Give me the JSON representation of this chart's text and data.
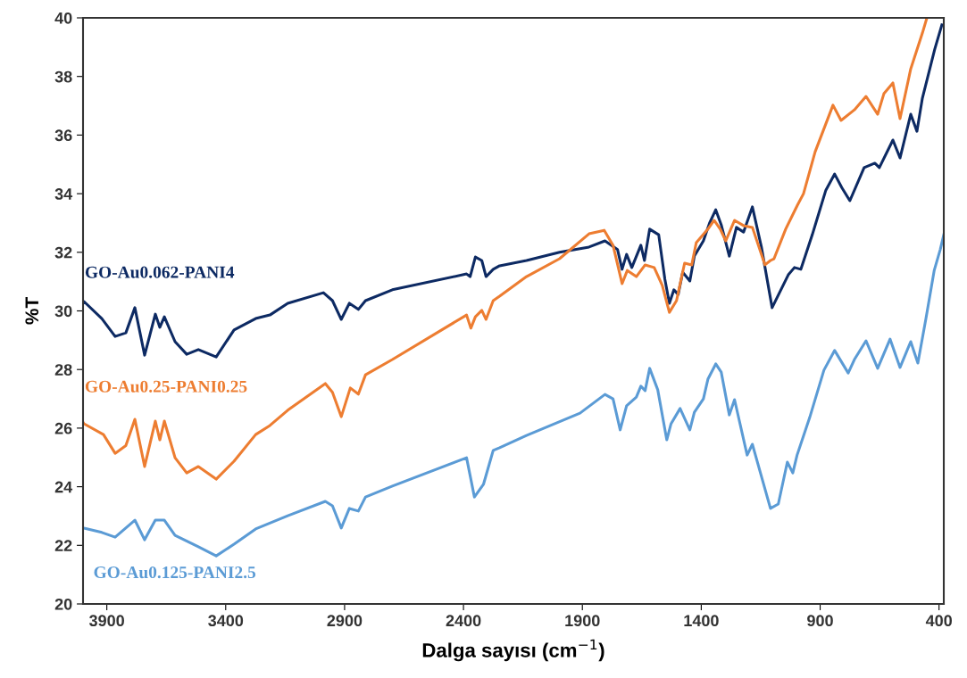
{
  "chart_data": {
    "type": "line",
    "xlabel": "Dalga sayısı (cm$^{−1}$)",
    "ylabel": "%T",
    "xlim": [
      4000,
      380
    ],
    "xticks": [
      3900,
      3400,
      2900,
      2400,
      1900,
      1400,
      900,
      400
    ],
    "ylim": [
      20,
      40
    ],
    "yticks": [
      20,
      22,
      24,
      26,
      28,
      30,
      32,
      34,
      36,
      38,
      40
    ],
    "grid": false,
    "legend": false,
    "marker": "none",
    "line_style": "solid",
    "series": [
      {
        "name": "GO-Au0.062-PANI4",
        "color": "#0d2a63",
        "x": [
          4000,
          3996,
          3921,
          3865,
          3820,
          3782,
          3741,
          3696,
          3677,
          3658,
          3613,
          3564,
          3515,
          3440,
          3365,
          3274,
          3214,
          3139,
          2989,
          2951,
          2914,
          2880,
          2842,
          2812,
          2699,
          2387,
          2372,
          2350,
          2323,
          2305,
          2275,
          2248,
          2135,
          1996,
          1872,
          1805,
          1752,
          1733,
          1714,
          1692,
          1654,
          1639,
          1617,
          1579,
          1553,
          1534,
          1515,
          1497,
          1478,
          1448,
          1429,
          1391,
          1365,
          1339,
          1316,
          1282,
          1252,
          1222,
          1185,
          1147,
          1102,
          1034,
          1008,
          981,
          933,
          876,
          839,
          809,
          775,
          715,
          670,
          651,
          594,
          564,
          519,
          493,
          470,
          418,
          388
        ],
        "values": [
          30.26,
          30.32,
          29.74,
          29.13,
          29.25,
          30.11,
          28.49,
          29.89,
          29.44,
          29.8,
          28.95,
          28.52,
          28.68,
          28.43,
          29.35,
          29.74,
          29.86,
          30.26,
          30.62,
          30.35,
          29.71,
          30.26,
          30.05,
          30.35,
          30.72,
          31.26,
          31.17,
          31.84,
          31.72,
          31.17,
          31.42,
          31.54,
          31.72,
          32.0,
          32.18,
          32.39,
          32.09,
          31.42,
          31.93,
          31.48,
          32.24,
          31.72,
          32.79,
          32.6,
          31.08,
          30.26,
          30.72,
          30.56,
          31.32,
          31.02,
          31.87,
          32.39,
          33.0,
          33.45,
          32.94,
          31.87,
          32.85,
          32.69,
          33.55,
          32.18,
          30.11,
          31.23,
          31.48,
          31.42,
          32.6,
          34.12,
          34.67,
          34.21,
          33.76,
          34.89,
          35.04,
          34.89,
          35.83,
          35.22,
          36.71,
          36.13,
          37.26,
          38.93,
          39.76
        ]
      },
      {
        "name": "GO-Au0.25-PANI0.25",
        "color": "#ed7d31",
        "x": [
          4000,
          3996,
          3914,
          3865,
          3820,
          3782,
          3741,
          3696,
          3677,
          3658,
          3613,
          3564,
          3515,
          3440,
          3365,
          3274,
          3214,
          3139,
          2981,
          2951,
          2914,
          2876,
          2842,
          2812,
          2699,
          2387,
          2369,
          2350,
          2323,
          2305,
          2275,
          2248,
          2135,
          1996,
          1872,
          1808,
          1771,
          1733,
          1711,
          1673,
          1636,
          1598,
          1564,
          1534,
          1504,
          1470,
          1440,
          1421,
          1372,
          1346,
          1320,
          1297,
          1260,
          1222,
          1185,
          1132,
          1109,
          1094,
          1045,
          996,
          970,
          921,
          846,
          812,
          756,
          707,
          658,
          632,
          594,
          564,
          519,
          470,
          451
        ],
        "values": [
          26.2,
          26.15,
          25.78,
          25.14,
          25.4,
          26.3,
          24.69,
          26.24,
          25.6,
          26.24,
          24.99,
          24.47,
          24.69,
          24.26,
          24.87,
          25.78,
          26.09,
          26.61,
          27.52,
          27.22,
          26.39,
          27.37,
          27.16,
          27.82,
          28.34,
          29.86,
          29.41,
          29.8,
          30.02,
          29.71,
          30.35,
          30.5,
          31.17,
          31.78,
          32.63,
          32.75,
          32.24,
          30.93,
          31.38,
          31.17,
          31.57,
          31.48,
          30.87,
          29.95,
          30.35,
          31.63,
          31.57,
          32.33,
          32.79,
          33.09,
          32.79,
          32.39,
          33.09,
          32.91,
          32.85,
          31.57,
          31.72,
          31.78,
          32.79,
          33.6,
          34.0,
          35.43,
          37.02,
          36.5,
          36.86,
          37.32,
          36.71,
          37.41,
          37.78,
          36.56,
          38.26,
          39.48,
          40.0
        ]
      },
      {
        "name": "GO-Au0.125-PANI2.5",
        "color": "#5b9bd5",
        "x": [
          4000,
          3996,
          3921,
          3865,
          3782,
          3741,
          3696,
          3658,
          3613,
          3515,
          3440,
          3365,
          3274,
          3139,
          2981,
          2951,
          2914,
          2880,
          2842,
          2812,
          2699,
          2387,
          2354,
          2316,
          2275,
          2248,
          2135,
          1910,
          1805,
          1771,
          1741,
          1714,
          1673,
          1654,
          1636,
          1617,
          1583,
          1545,
          1527,
          1489,
          1448,
          1429,
          1391,
          1372,
          1339,
          1316,
          1282,
          1260,
          1207,
          1185,
          1109,
          1076,
          1038,
          1015,
          997,
          944,
          884,
          839,
          782,
          756,
          707,
          658,
          606,
          564,
          519,
          489,
          455,
          420,
          395,
          380
        ],
        "values": [
          22.6,
          22.59,
          22.44,
          22.28,
          22.86,
          22.19,
          22.86,
          22.86,
          22.34,
          21.95,
          21.64,
          22.04,
          22.56,
          23.01,
          23.5,
          23.35,
          22.59,
          23.26,
          23.17,
          23.65,
          24.02,
          24.99,
          23.65,
          24.08,
          25.24,
          25.33,
          25.75,
          26.51,
          27.15,
          27.0,
          25.94,
          26.76,
          27.06,
          27.43,
          27.28,
          28.04,
          27.31,
          25.6,
          26.15,
          26.67,
          25.94,
          26.54,
          27.0,
          27.67,
          28.19,
          27.91,
          26.45,
          26.97,
          25.08,
          25.45,
          23.26,
          23.41,
          24.84,
          24.47,
          25.08,
          26.36,
          27.98,
          28.65,
          27.88,
          28.34,
          28.98,
          28.04,
          29.04,
          28.07,
          28.95,
          28.22,
          29.74,
          31.39,
          32.09,
          32.6
        ]
      }
    ]
  }
}
